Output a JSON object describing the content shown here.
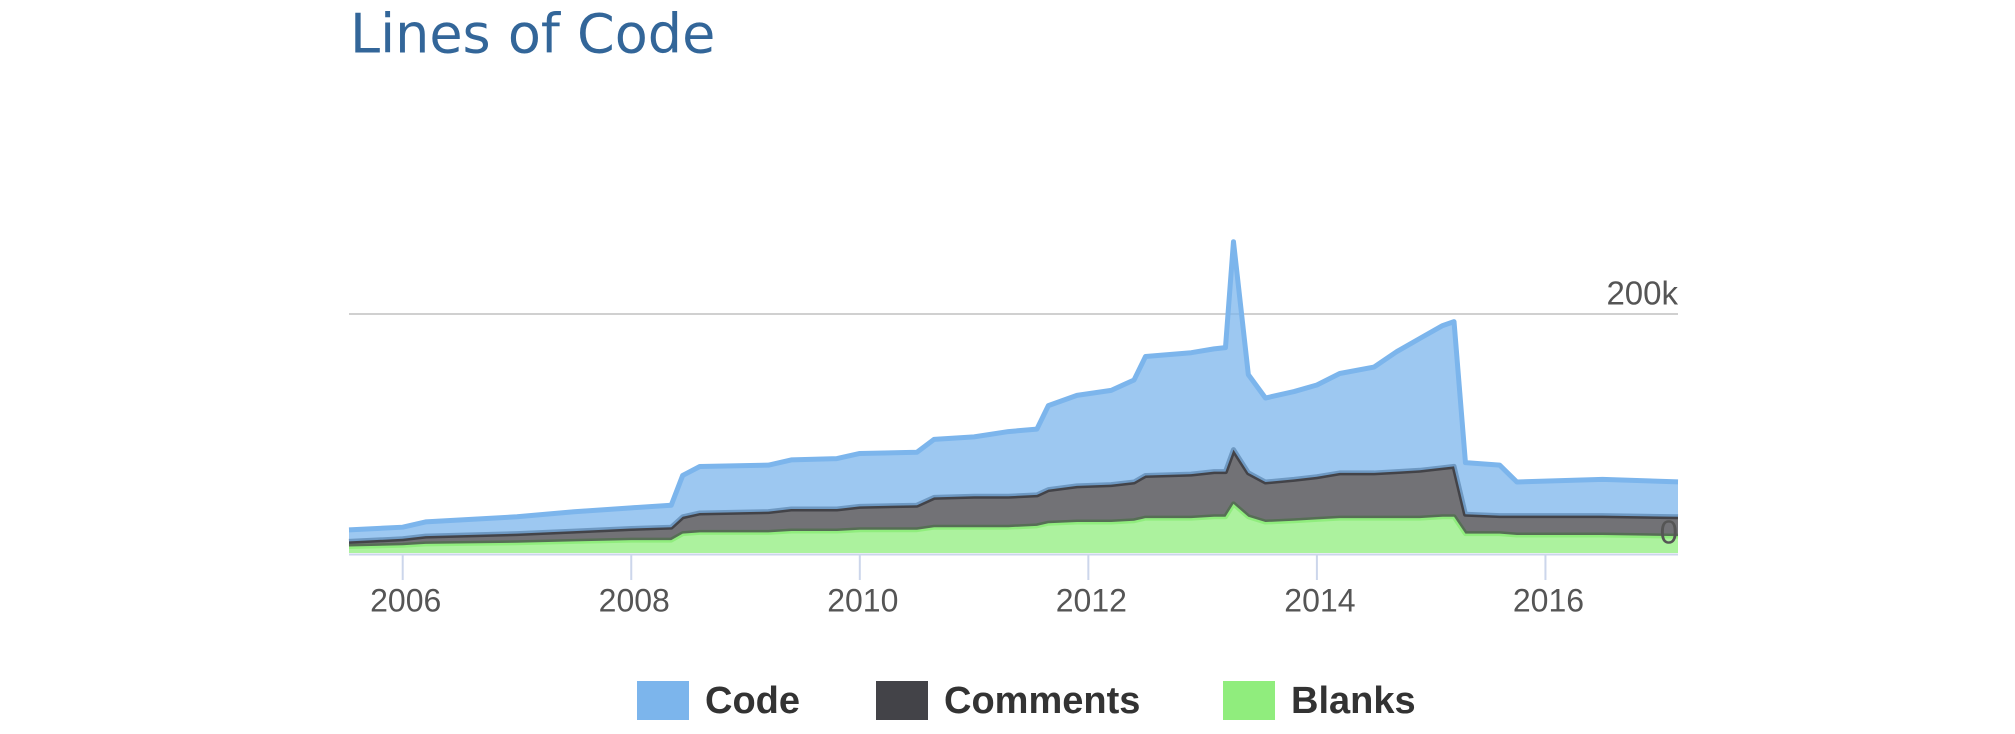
{
  "chart_data": {
    "type": "area",
    "stacked": true,
    "title": "Lines of Code",
    "x": [
      2005.53,
      2006.0,
      2006.2,
      2007.0,
      2007.5,
      2008.0,
      2008.35,
      2008.45,
      2008.6,
      2009.2,
      2009.4,
      2009.8,
      2010.0,
      2010.5,
      2010.65,
      2011.0,
      2011.3,
      2011.55,
      2011.65,
      2011.9,
      2012.2,
      2012.4,
      2012.5,
      2012.9,
      2013.1,
      2013.2,
      2013.27,
      2013.4,
      2013.55,
      2013.8,
      2014.0,
      2014.2,
      2014.5,
      2014.7,
      2014.9,
      2015.1,
      2015.2,
      2015.3,
      2015.6,
      2015.75,
      2016.5,
      2017.16
    ],
    "series": [
      {
        "name": "Code",
        "color": "#7cb5ec",
        "values": [
          9700,
          9700,
          11900,
          14100,
          16200,
          17300,
          18400,
          34600,
          38900,
          38900,
          41100,
          42200,
          44300,
          44300,
          48600,
          49700,
          54100,
          55100,
          70300,
          75700,
          78900,
          85400,
          99500,
          101600,
          102700,
          103800,
          174000,
          82200,
          70300,
          73500,
          76800,
          83200,
          88600,
          100500,
          110300,
          118900,
          121100,
          43200,
          42200,
          28100,
          30300,
          29200
        ]
      },
      {
        "name": "Comments",
        "color": "#434348",
        "values": [
          4300,
          5400,
          6500,
          7600,
          8600,
          9700,
          10800,
          14100,
          16200,
          17300,
          18400,
          18400,
          19500,
          20500,
          24900,
          25900,
          25900,
          25900,
          28100,
          30300,
          31300,
          32400,
          35700,
          36800,
          37800,
          37800,
          45400,
          36800,
          33500,
          34600,
          35700,
          37800,
          37800,
          38900,
          40000,
          41100,
          42200,
          16200,
          15100,
          16200,
          16200,
          16200
        ]
      },
      {
        "name": "Blanks",
        "color": "#90ed7d",
        "values": [
          5400,
          6500,
          7600,
          8600,
          9700,
          10800,
          10800,
          16200,
          17300,
          17300,
          18400,
          18400,
          19500,
          19500,
          21600,
          21600,
          21600,
          22700,
          24900,
          25900,
          25900,
          27000,
          29200,
          29200,
          30300,
          30300,
          41100,
          30300,
          25900,
          27000,
          28100,
          29200,
          29200,
          29200,
          29200,
          30300,
          30300,
          16200,
          16200,
          15100,
          15100,
          14100
        ]
      }
    ],
    "xlim": [
      2005.53,
      2017.16
    ],
    "xticks": [
      2006,
      2008,
      2010,
      2012,
      2014,
      2016
    ],
    "ylim": [
      0,
      300000
    ],
    "yticks": [
      0,
      {
        "value": 200000,
        "label": "200k"
      }
    ],
    "grid": true
  }
}
